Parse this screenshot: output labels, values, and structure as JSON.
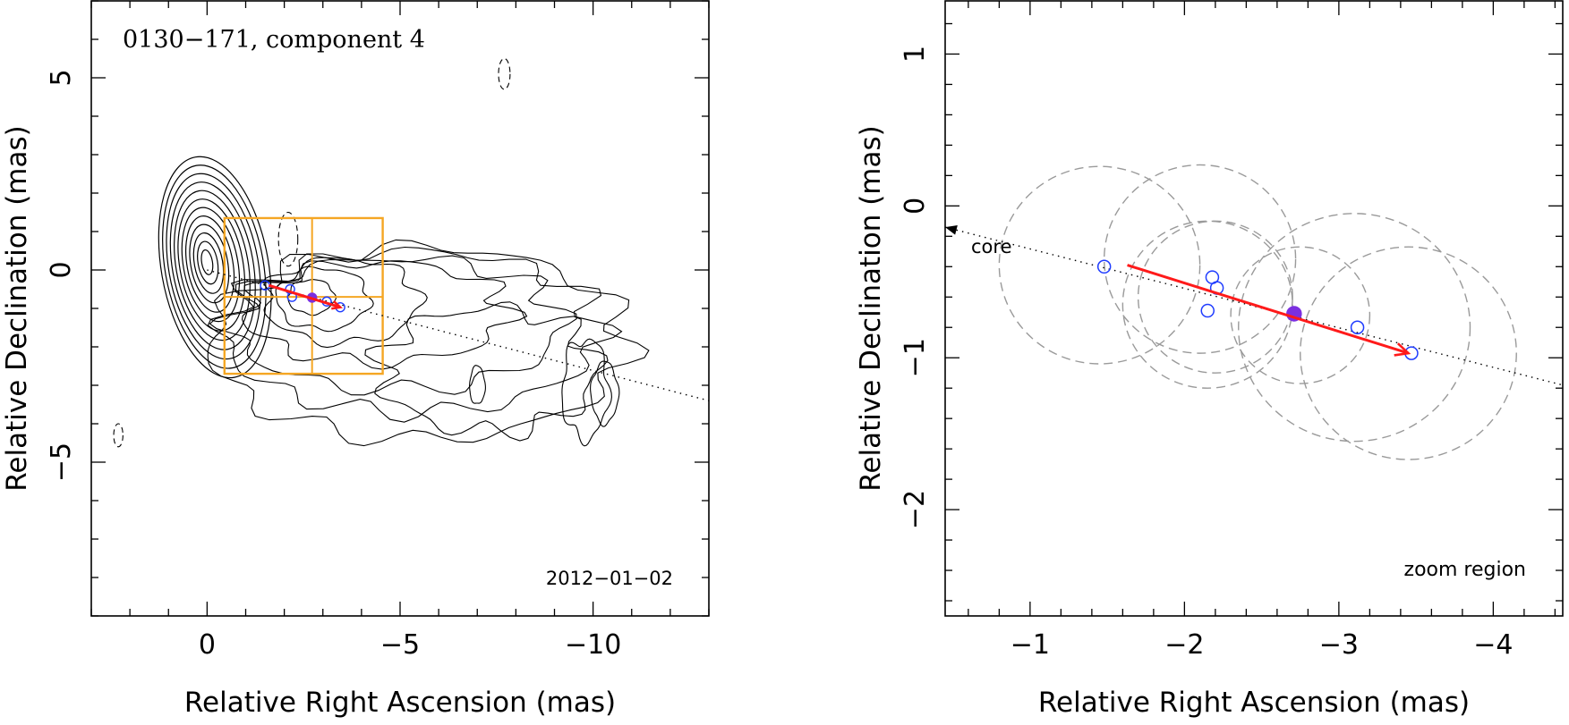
{
  "chart_data": [
    {
      "type": "contour",
      "title": "0130−171, component 4",
      "epoch": "2012−01−02",
      "xlabel": "Relative Right Ascension (mas)",
      "ylabel": "Relative Declination (mas)",
      "xlim": [
        3,
        -13
      ],
      "ylim": [
        -9,
        7
      ],
      "xticks": [
        {
          "value": 0,
          "label": "0"
        },
        {
          "value": -5,
          "label": "−5"
        },
        {
          "value": -10,
          "label": "−10"
        }
      ],
      "yticks": [
        {
          "value": 5,
          "label": "5"
        },
        {
          "value": 0,
          "label": "0"
        },
        {
          "value": -5,
          "label": "−5"
        }
      ],
      "jet_axis": {
        "from": [
          0,
          0
        ],
        "to": [
          -13,
          -3.4
        ]
      },
      "motion_vector": {
        "from": [
          -1.6,
          -0.4
        ],
        "to": [
          -3.45,
          -0.97
        ]
      },
      "components": [
        {
          "x": -1.5,
          "y": -0.4,
          "filled": false
        },
        {
          "x": -2.15,
          "y": -0.5,
          "filled": false
        },
        {
          "x": -2.2,
          "y": -0.7,
          "filled": false
        },
        {
          "x": -2.72,
          "y": -0.72,
          "filled": true
        },
        {
          "x": -3.1,
          "y": -0.82,
          "filled": false
        },
        {
          "x": -3.45,
          "y": -0.97,
          "filled": false
        }
      ],
      "zoom_box": {
        "x": [
          -0.45,
          -4.55
        ],
        "y": [
          1.35,
          -2.7
        ],
        "mid_x": -2.72,
        "mid_y": -0.7
      }
    },
    {
      "type": "scatter",
      "annotation_core": "core",
      "annotation_region": "zoom region",
      "xlabel": "Relative Right Ascension (mas)",
      "ylabel": "Relative Declination (mas)",
      "xlim": [
        -0.45,
        -4.45
      ],
      "ylim": [
        -2.7,
        1.35
      ],
      "xticks": [
        {
          "value": -1,
          "label": "−1"
        },
        {
          "value": -2,
          "label": "−2"
        },
        {
          "value": -3,
          "label": "−3"
        },
        {
          "value": -4,
          "label": "−4"
        }
      ],
      "yticks": [
        {
          "value": 1,
          "label": "1"
        },
        {
          "value": 0,
          "label": "0"
        },
        {
          "value": -1,
          "label": "−1"
        },
        {
          "value": -2,
          "label": "−2"
        }
      ],
      "jet_axis": {
        "from": [
          -0.45,
          -0.14
        ],
        "to": [
          -4.45,
          -1.18
        ]
      },
      "motion_vector": {
        "from": [
          -1.63,
          -0.39
        ],
        "to": [
          -3.45,
          -0.97
        ]
      },
      "components": [
        {
          "x": -1.48,
          "y": -0.4,
          "filled": false
        },
        {
          "x": -2.18,
          "y": -0.47,
          "filled": false
        },
        {
          "x": -2.21,
          "y": -0.54,
          "filled": false
        },
        {
          "x": -2.15,
          "y": -0.69,
          "filled": false
        },
        {
          "x": -2.71,
          "y": -0.71,
          "filled": true
        },
        {
          "x": -3.12,
          "y": -0.8,
          "filled": false
        },
        {
          "x": -3.47,
          "y": -0.97,
          "filled": false
        }
      ],
      "size_circles": [
        {
          "x": -1.45,
          "y": -0.39,
          "r": 0.65
        },
        {
          "x": -2.1,
          "y": -0.35,
          "r": 0.62
        },
        {
          "x": -2.15,
          "y": -0.65,
          "r": 0.55
        },
        {
          "x": -2.2,
          "y": -0.6,
          "r": 0.5
        },
        {
          "x": -2.75,
          "y": -0.72,
          "r": 0.45
        },
        {
          "x": -3.1,
          "y": -0.8,
          "r": 0.75
        },
        {
          "x": -3.45,
          "y": -0.97,
          "r": 0.7
        }
      ]
    }
  ]
}
